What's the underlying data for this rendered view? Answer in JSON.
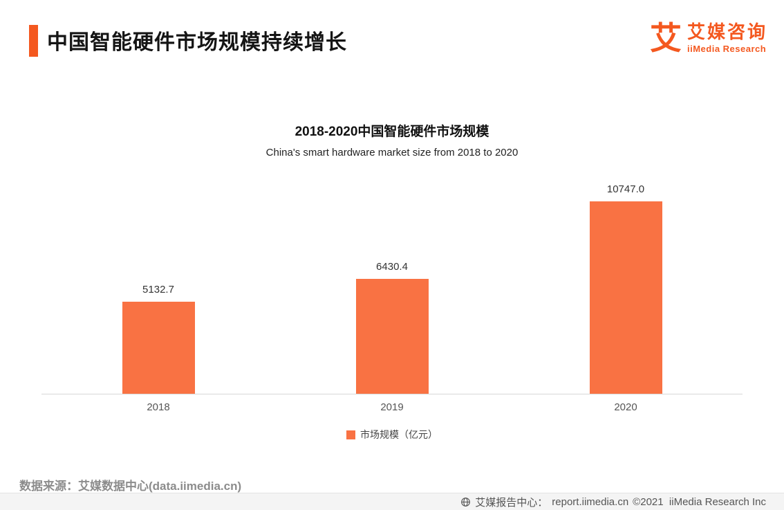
{
  "colors": {
    "accent": "#F4581F",
    "bar": "#F97243"
  },
  "header": {
    "title": "中国智能硬件市场规模持续增长"
  },
  "brand": {
    "glyph": "艾",
    "name": "艾媒咨询",
    "subname": "iiMedia Research"
  },
  "chart_data": {
    "type": "bar",
    "title": "2018-2020中国智能硬件市场规模",
    "subtitle": "China's smart hardware market size from 2018 to 2020",
    "categories": [
      "2018",
      "2019",
      "2020"
    ],
    "values": [
      5132.7,
      6430.4,
      10747.0
    ],
    "value_labels": [
      "5132.7",
      "6430.4",
      "10747.0"
    ],
    "series_name": "市场规模（亿元）",
    "legend": [
      "市场规模（亿元）"
    ],
    "ylabel": "",
    "xlabel": "",
    "ylim": [
      0,
      10747
    ],
    "grid": false,
    "legend_position": "bottom",
    "bar_color": "#F97243"
  },
  "footer": {
    "source": "数据来源：艾媒数据中心(data.iimedia.cn)",
    "report_label": "艾媒报告中心：",
    "report_url": "report.iimedia.cn",
    "copyright": "©2021  iiMedia Research Inc"
  }
}
